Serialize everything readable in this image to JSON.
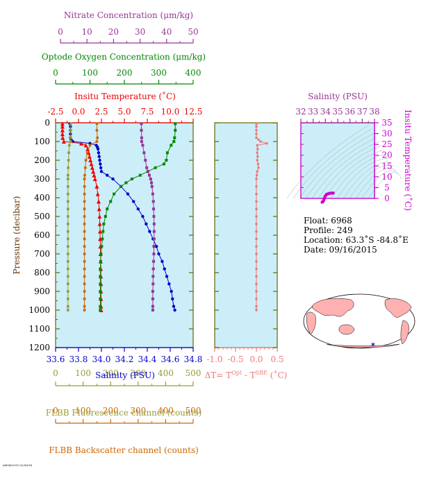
{
  "colors": {
    "nitrate": "#993399",
    "oxygen": "#008800",
    "temperature": "#ee0000",
    "salinity": "#0000cc",
    "dt": "#ee7777",
    "fluorescence": "#999933",
    "backscatter": "#cc6600",
    "ts": "#cc00cc",
    "plot_bg": "#cceef8",
    "frame": "#666600",
    "land": "#ffb0b0"
  },
  "axes": {
    "nitrate": {
      "label": "Nitrate Concentration (μm/kg)",
      "ticks": [
        "0",
        "10",
        "20",
        "30",
        "40",
        "50"
      ],
      "range": [
        0,
        50
      ]
    },
    "oxygen": {
      "label": "Optode Oxygen Concentration (μm/kg)",
      "ticks": [
        "0",
        "100",
        "200",
        "300",
        "400"
      ],
      "range": [
        0,
        400
      ]
    },
    "temperature": {
      "label": "Insitu Temperature (˚C)",
      "ticks": [
        "-2.5",
        "0.0",
        "2.5",
        "5.0",
        "7.5",
        "10.0",
        "12.5"
      ],
      "range": [
        -2.5,
        12.5
      ]
    },
    "pressure": {
      "label": "Pressure (decibar)",
      "ticks": [
        "0",
        "100",
        "200",
        "300",
        "400",
        "500",
        "600",
        "700",
        "800",
        "900",
        "1000",
        "1100",
        "1200"
      ],
      "range": [
        0,
        1200
      ]
    },
    "salinity": {
      "label": "Salinity (PSU)",
      "ticks": [
        "33.6",
        "33.8",
        "34.0",
        "34.2",
        "34.4",
        "34.6",
        "34.8"
      ],
      "range": [
        33.6,
        34.8
      ]
    },
    "fluorescence": {
      "label": "FLBB Fluorescence channel (counts)",
      "ticks": [
        "0",
        "100",
        "200",
        "300",
        "400",
        "500"
      ],
      "range": [
        0,
        500
      ]
    },
    "backscatter": {
      "label": "FLBB Backscatter channel (counts)",
      "ticks": [
        "0",
        "100",
        "200",
        "300",
        "400",
        "500"
      ],
      "range": [
        0,
        500
      ]
    },
    "dt": {
      "label_main": "ΔT= T",
      "label_sup1": "Opt",
      "label_mid": " - T",
      "label_sup2": "SBE",
      "label_end": " (˚C)",
      "ticks": [
        "-1.0",
        "-0.5",
        "0.0",
        "0.5"
      ],
      "range": [
        -1.0,
        0.5
      ]
    },
    "ts_salinity": {
      "label": "Salinity (PSU)",
      "ticks": [
        "32",
        "33",
        "34",
        "35",
        "36",
        "37",
        "38"
      ],
      "range": [
        32,
        38
      ]
    },
    "ts_temperature": {
      "label": "Insitu Temperature (˚C)",
      "ticks": [
        "0",
        "5",
        "10",
        "15",
        "20",
        "25",
        "30",
        "35"
      ],
      "range": [
        0,
        35
      ]
    }
  },
  "info": {
    "float": "Float:  6968",
    "profile": "Profile:  249",
    "location": "Location:  63.3˚S  -84.8˚E",
    "date": "Date:  09/16/2015"
  },
  "footer": {
    "tiny_text": "AH04/2015 02/06/16"
  },
  "chart_data": [
    {
      "type": "line",
      "name": "Salinity",
      "x_axis": "salinity",
      "pressure": [
        5,
        20,
        40,
        60,
        80,
        90,
        100,
        110,
        120,
        130,
        140,
        160,
        180,
        200,
        220,
        240,
        260,
        280,
        300,
        340,
        380,
        420,
        460,
        500,
        540,
        580,
        620,
        660,
        700,
        740,
        780,
        820,
        860,
        900,
        940,
        980,
        1000
      ],
      "values": [
        33.725,
        33.73,
        33.73,
        33.73,
        33.73,
        33.735,
        33.75,
        33.9,
        33.955,
        33.965,
        33.97,
        33.975,
        33.98,
        33.985,
        33.99,
        33.995,
        34.0,
        34.05,
        34.1,
        34.17,
        34.23,
        34.28,
        34.32,
        34.36,
        34.39,
        34.42,
        34.45,
        34.48,
        34.5,
        34.53,
        34.55,
        34.57,
        34.59,
        34.61,
        34.62,
        34.63,
        34.64
      ]
    },
    {
      "type": "line",
      "name": "Temperature",
      "x_axis": "temperature",
      "pressure": [
        5,
        20,
        40,
        60,
        80,
        100,
        110,
        120,
        140,
        160,
        180,
        200,
        220,
        240,
        260,
        280,
        300,
        340,
        380,
        420,
        460,
        500,
        540,
        580,
        620,
        660,
        700,
        740,
        780,
        820,
        860,
        900,
        940,
        980,
        1000
      ],
      "values": [
        -1.75,
        -1.75,
        -1.75,
        -1.75,
        -1.72,
        -1.6,
        0.3,
        0.8,
        1.0,
        1.1,
        1.2,
        1.3,
        1.4,
        1.5,
        1.6,
        1.7,
        1.8,
        2.0,
        2.1,
        2.2,
        2.25,
        2.3,
        2.32,
        2.35,
        2.36,
        2.38,
        2.4,
        2.42,
        2.43,
        2.44,
        2.45,
        2.45,
        2.46,
        2.46,
        2.47
      ]
    },
    {
      "type": "line",
      "name": "Oxygen",
      "x_axis": "oxygen",
      "pressure": [
        5,
        40,
        80,
        100,
        120,
        160,
        200,
        220,
        240,
        260,
        280,
        300,
        320,
        340,
        380,
        420,
        460,
        500,
        540,
        580,
        620,
        660,
        700,
        740,
        780,
        820,
        860,
        900,
        940,
        980,
        1000
      ],
      "values": [
        348,
        348,
        346,
        344,
        336,
        325,
        322,
        315,
        290,
        268,
        246,
        222,
        205,
        190,
        170,
        160,
        150,
        145,
        140,
        138,
        136,
        134,
        132,
        131,
        130,
        130,
        130,
        130,
        130,
        130,
        130
      ]
    },
    {
      "type": "line",
      "name": "Nitrate",
      "x_axis": "nitrate",
      "pressure": [
        5,
        40,
        80,
        100,
        120,
        160,
        200,
        240,
        260,
        280,
        300,
        320,
        340,
        380,
        420,
        460,
        500,
        540,
        580,
        620,
        660,
        700,
        740,
        780,
        820,
        860,
        900,
        940,
        980,
        1000
      ],
      "values": [
        30.5,
        30.5,
        30.6,
        30.6,
        31.0,
        31.5,
        32.0,
        32.5,
        33.0,
        33.5,
        34.0,
        34.3,
        34.5,
        34.8,
        35.0,
        35.1,
        35.2,
        35.3,
        35.3,
        35.3,
        35.2,
        35.2,
        35.1,
        35.0,
        34.9,
        34.9,
        34.8,
        34.8,
        34.8,
        34.8
      ]
    },
    {
      "type": "line",
      "name": "Fluorescence",
      "x_axis": "fluorescence",
      "pressure": [
        5,
        40,
        80,
        100,
        120,
        160,
        200,
        240,
        280,
        300,
        340,
        380,
        420,
        460,
        500,
        540,
        580,
        620,
        660,
        700,
        740,
        780,
        820,
        860,
        900,
        940,
        980,
        1000
      ],
      "values": [
        55,
        55,
        55,
        55,
        50,
        48,
        47,
        46,
        45,
        45,
        45,
        45,
        45,
        45,
        45,
        45,
        45,
        45,
        45,
        45,
        45,
        45,
        45,
        45,
        45,
        45,
        45,
        45
      ]
    },
    {
      "type": "line",
      "name": "Backscatter",
      "x_axis": "backscatter",
      "pressure": [
        5,
        40,
        80,
        100,
        120,
        160,
        200,
        240,
        280,
        300,
        340,
        380,
        420,
        460,
        500,
        540,
        580,
        620,
        660,
        700,
        740,
        780,
        820,
        860,
        900,
        940,
        980,
        1000
      ],
      "values": [
        150,
        150,
        152,
        150,
        125,
        115,
        110,
        108,
        106,
        105,
        105,
        105,
        105,
        105,
        105,
        105,
        105,
        105,
        105,
        105,
        105,
        105,
        105,
        105,
        105,
        105,
        105,
        105
      ]
    },
    {
      "type": "line",
      "name": "Delta T",
      "x_axis": "dt",
      "pressure": [
        5,
        20,
        40,
        60,
        80,
        90,
        100,
        110,
        120,
        140,
        160,
        180,
        200,
        220,
        240,
        260,
        280,
        300,
        340,
        380,
        420,
        460,
        500,
        540,
        580,
        620,
        660,
        700,
        740,
        780,
        820,
        860,
        900,
        940,
        980,
        1000
      ],
      "values": [
        0.0,
        0.0,
        0.0,
        0.0,
        0.0,
        0.05,
        0.1,
        0.25,
        0.02,
        0.03,
        0.02,
        0.03,
        0.02,
        0.04,
        0.05,
        0.02,
        0.01,
        0.0,
        0.0,
        0.0,
        0.0,
        0.0,
        0.0,
        0.0,
        0.0,
        0.0,
        0.0,
        0.0,
        0.0,
        0.0,
        0.0,
        0.0,
        0.0,
        0.0,
        0.0,
        0.0
      ]
    },
    {
      "type": "scatter",
      "name": "T-S",
      "x_axis": "ts_salinity",
      "y_axis": "ts_temperature",
      "x": [
        33.73,
        33.75,
        33.8,
        33.85,
        33.9,
        33.95,
        34.0,
        34.05,
        34.1,
        34.2,
        34.3,
        34.4,
        34.5,
        34.6,
        34.64
      ],
      "y": [
        -1.75,
        -1.7,
        -1.5,
        -1.0,
        -0.2,
        0.6,
        1.2,
        1.6,
        1.9,
        2.1,
        2.3,
        2.4,
        2.45,
        2.47,
        2.47
      ]
    }
  ]
}
